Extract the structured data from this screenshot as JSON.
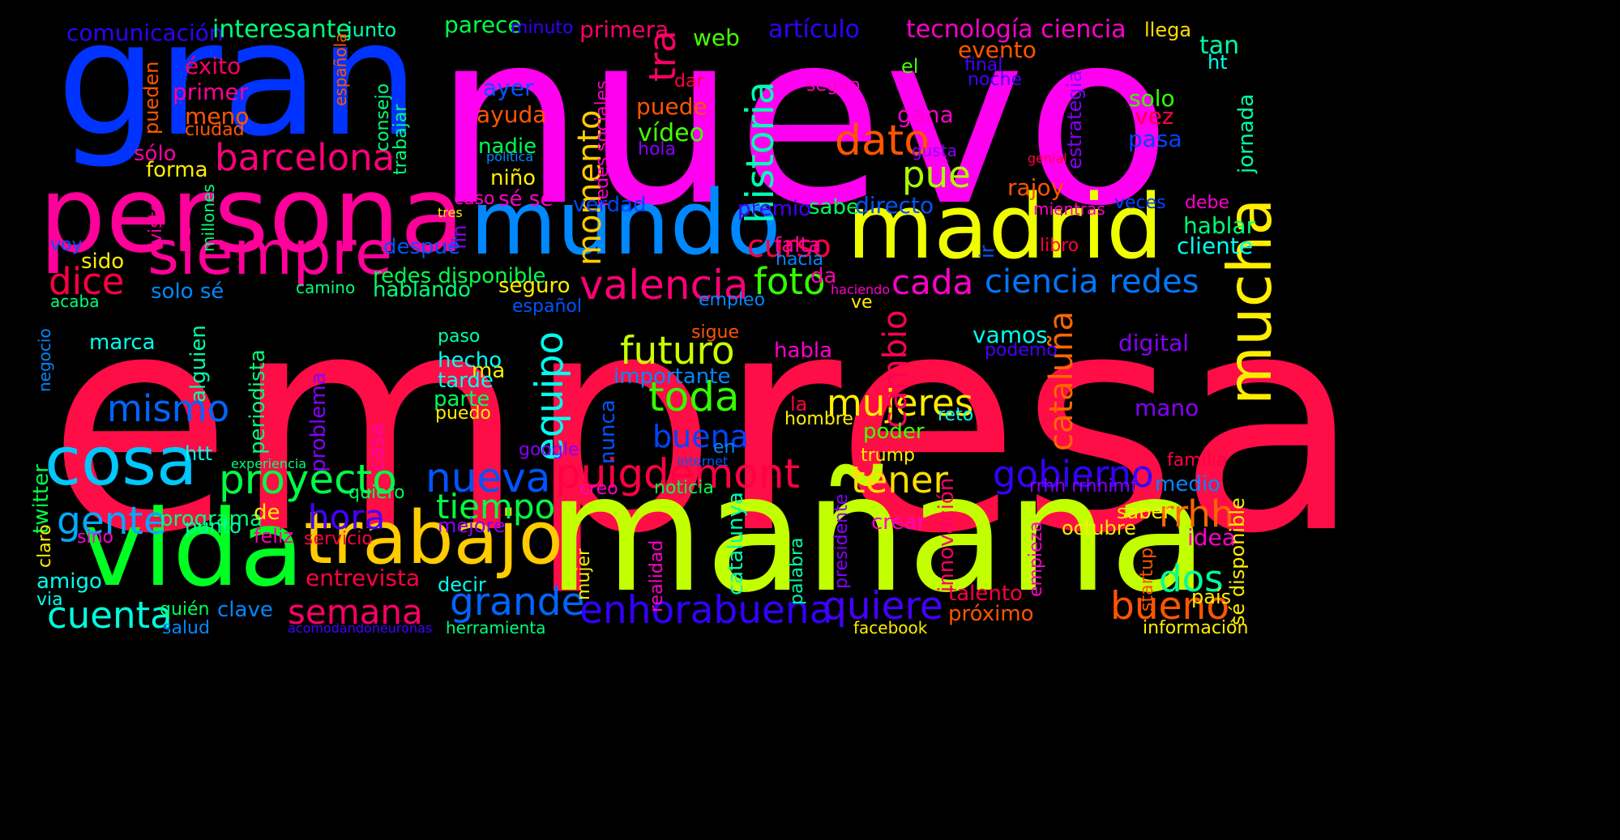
{
  "words": [
    {
      "text": "empresa",
      "color": "#ff0d47"
    },
    {
      "text": "nuevo",
      "color": "#ff00f0"
    },
    {
      "text": "mañana",
      "color": "#c2ff00"
    },
    {
      "text": "gran",
      "color": "#0033ff"
    },
    {
      "text": "persona",
      "color": "#ff009a"
    },
    {
      "text": "vida",
      "color": "#00ff22"
    },
    {
      "text": "madrid",
      "color": "#f0ff00"
    },
    {
      "text": "mundo",
      "color": "#0088ff"
    },
    {
      "text": "trabajo",
      "color": "#ffcc00"
    },
    {
      "text": "siempre",
      "color": "#ff0099"
    },
    {
      "text": "cosa",
      "color": "#00c8ff"
    },
    {
      "text": "mucha",
      "color": "#ffee00"
    },
    {
      "text": "barcelona",
      "color": "#ff007a"
    },
    {
      "text": "proyecto",
      "color": "#00ff44"
    },
    {
      "text": "puigdemont",
      "color": "#ff0044"
    },
    {
      "text": "valencia",
      "color": "#ff0077"
    },
    {
      "text": "nueva",
      "color": "#0055ff"
    },
    {
      "text": "historia",
      "color": "#00ffb3"
    },
    {
      "text": "enhorabuena",
      "color": "#3300ff"
    },
    {
      "text": "grande",
      "color": "#0066ff"
    },
    {
      "text": "quiere",
      "color": "#4400ff"
    },
    {
      "text": "futuro",
      "color": "#c8ff00"
    },
    {
      "text": "equipo",
      "color": "#00ffee"
    },
    {
      "text": "toda",
      "color": "#33ff00"
    },
    {
      "text": "tener",
      "color": "#ffdd00"
    },
    {
      "text": "semana",
      "color": "#ff0066"
    },
    {
      "text": "cuenta",
      "color": "#00ffdd"
    },
    {
      "text": "gente",
      "color": "#00aaff"
    },
    {
      "text": "gobierno",
      "color": "#3300ff"
    },
    {
      "text": "bueno",
      "color": "#ff5500"
    },
    {
      "text": "mujeres",
      "color": "#ffee00"
    },
    {
      "text": "dato",
      "color": "#ff5500"
    },
    {
      "text": "foto",
      "color": "#33ff00"
    },
    {
      "text": "cada",
      "color": "#ff00cc"
    },
    {
      "text": "ciencia redes",
      "color": "#0077ff"
    },
    {
      "text": "mismo",
      "color": "#0066ff"
    },
    {
      "text": "hora",
      "color": "#4400ff"
    },
    {
      "text": "tiempo",
      "color": "#00ff44"
    },
    {
      "text": "pue",
      "color": "#aaff00"
    },
    {
      "text": "momento",
      "color": "#ffcc00"
    },
    {
      "text": "cataluña",
      "color": "#ff6600"
    },
    {
      "text": "cambio",
      "color": "#ff0055"
    },
    {
      "text": "curso",
      "color": "#ff0044"
    },
    {
      "text": "dos",
      "color": "#00ff99"
    },
    {
      "text": "rrhh",
      "color": "#ff6600"
    },
    {
      "text": "buena",
      "color": "#0044ff"
    },
    {
      "text": "dice",
      "color": "#ff0044"
    },
    {
      "text": "tra",
      "color": "#ff0066"
    },
    {
      "text": "comunicación",
      "color": "#3300ff"
    },
    {
      "text": "interesante",
      "color": "#00ff77"
    },
    {
      "text": "junto",
      "color": "#00ffaa"
    },
    {
      "text": "parece",
      "color": "#00ff44"
    },
    {
      "text": "minuto",
      "color": "#3300ff"
    },
    {
      "text": "primera",
      "color": "#ff0066"
    },
    {
      "text": "web",
      "color": "#44ff00"
    },
    {
      "text": "artículo",
      "color": "#3300ff"
    },
    {
      "text": "tecnología ciencia",
      "color": "#ff00cc"
    },
    {
      "text": "llega",
      "color": "#ffdd00"
    },
    {
      "text": "tan",
      "color": "#00ffaa"
    },
    {
      "text": "ht",
      "color": "#00ffee"
    },
    {
      "text": "éxito",
      "color": "#ff0066"
    },
    {
      "text": "evento",
      "color": "#ff5500"
    },
    {
      "text": "el",
      "color": "#44ff00"
    },
    {
      "text": "final",
      "color": "#4400ff"
    },
    {
      "text": "noche",
      "color": "#4400ff"
    },
    {
      "text": "primer",
      "color": "#ff0099"
    },
    {
      "text": "pueden",
      "color": "#ff5500"
    },
    {
      "text": "meno",
      "color": "#ff5500"
    },
    {
      "text": "ciudad",
      "color": "#ff5500"
    },
    {
      "text": "española",
      "color": "#ff5500"
    },
    {
      "text": "consejo",
      "color": "#00ff77"
    },
    {
      "text": "trabajar",
      "color": "#00ff77"
    },
    {
      "text": "ayer",
      "color": "#0055ff"
    },
    {
      "text": "ayuda",
      "color": "#ff5500"
    },
    {
      "text": "puede",
      "color": "#ff5500"
    },
    {
      "text": "dar",
      "color": "#ff0044"
    },
    {
      "text": "según",
      "color": "#ff00cc"
    },
    {
      "text": "gana",
      "color": "#ff00cc"
    },
    {
      "text": "estrategia",
      "color": "#8800ff"
    },
    {
      "text": "solo",
      "color": "#33ff00"
    },
    {
      "text": "vez",
      "color": "#ff0044"
    },
    {
      "text": "pasa",
      "color": "#0044ff"
    },
    {
      "text": "jornada",
      "color": "#00ffaa"
    },
    {
      "text": "sólo",
      "color": "#ff00aa"
    },
    {
      "text": "forma",
      "color": "#ffee00"
    },
    {
      "text": "nadie",
      "color": "#00ff55"
    },
    {
      "text": "politica",
      "color": "#0088ff"
    },
    {
      "text": "redes sociales",
      "color": "#ff00cc"
    },
    {
      "text": "vídeo",
      "color": "#44ff00"
    },
    {
      "text": "hola",
      "color": "#8800ff"
    },
    {
      "text": "gusta",
      "color": "#8800ff"
    },
    {
      "text": "genial",
      "color": "#ff0044"
    },
    {
      "text": "niño",
      "color": "#ffee00"
    },
    {
      "text": "caso",
      "color": "#ff00cc"
    },
    {
      "text": "sé sé",
      "color": "#ff00cc"
    },
    {
      "text": "verdad",
      "color": "#0044ff"
    },
    {
      "text": "premio",
      "color": "#4400ff"
    },
    {
      "text": "sabe",
      "color": "#00ff55"
    },
    {
      "text": "directo",
      "color": "#0055ff"
    },
    {
      "text": "rajoy",
      "color": "#ff5500"
    },
    {
      "text": "mientras",
      "color": "#ff00cc"
    },
    {
      "text": "veces",
      "color": "#0044ff"
    },
    {
      "text": "debe",
      "color": "#ff00cc"
    },
    {
      "text": "visto",
      "color": "#ff00aa"
    },
    {
      "text": "millones",
      "color": "#00ff77"
    },
    {
      "text": "tres",
      "color": "#ffee00"
    },
    {
      "text": "fin",
      "color": "#8800ff"
    },
    {
      "text": "voy",
      "color": "#0055ff"
    },
    {
      "text": "falta",
      "color": "#ff00aa"
    },
    {
      "text": "ir",
      "color": "#0055ff"
    },
    {
      "text": "libro",
      "color": "#ff0044"
    },
    {
      "text": "hablar",
      "color": "#00ff77"
    },
    {
      "text": "cliente",
      "color": "#00ffee"
    },
    {
      "text": "sido",
      "color": "#ffee00"
    },
    {
      "text": "despué",
      "color": "#0055ff"
    },
    {
      "text": "hacia",
      "color": "#0088ff"
    },
    {
      "text": "redes disponible",
      "color": "#00ff44"
    },
    {
      "text": "da",
      "color": "#ff00aa"
    },
    {
      "text": "solo sé",
      "color": "#0088ff"
    },
    {
      "text": "camino",
      "color": "#00ff77"
    },
    {
      "text": "hablando",
      "color": "#00ff77"
    },
    {
      "text": "seguro",
      "color": "#ffee00"
    },
    {
      "text": "haciendo",
      "color": "#ff00cc"
    },
    {
      "text": "empleo",
      "color": "#0088ff"
    },
    {
      "text": "acaba",
      "color": "#00ff77"
    },
    {
      "text": "español",
      "color": "#0055ff"
    },
    {
      "text": "ve",
      "color": "#ffee00"
    },
    {
      "text": "twitter",
      "color": "#00ff44"
    },
    {
      "text": "negocio",
      "color": "#0088ff"
    },
    {
      "text": "marca",
      "color": "#00ffee"
    },
    {
      "text": "alguien",
      "color": "#00ffaa"
    },
    {
      "text": "periodista",
      "color": "#00ff77"
    },
    {
      "text": "paso",
      "color": "#00ffaa"
    },
    {
      "text": "sigue",
      "color": "#ff5500"
    },
    {
      "text": "vamos",
      "color": "#00ffee"
    },
    {
      "text": "podemo",
      "color": "#4400ff"
    },
    {
      "text": "digital",
      "color": "#8800ff"
    },
    {
      "text": "ma",
      "color": "#ffee00"
    },
    {
      "text": "hecho",
      "color": "#00ffee"
    },
    {
      "text": "importante",
      "color": "#0088ff"
    },
    {
      "text": "habla",
      "color": "#ff00cc"
    },
    {
      "text": "tarde",
      "color": "#00ffee"
    },
    {
      "text": "parte",
      "color": "#00ff55"
    },
    {
      "text": "puedo",
      "color": "#ffee00"
    },
    {
      "text": "problema",
      "color": "#8800ff"
    },
    {
      "text": "la",
      "color": "#ff0044"
    },
    {
      "text": "hombre",
      "color": "#ffee00"
    },
    {
      "text": "reto",
      "color": "#00ffee"
    },
    {
      "text": "mano",
      "color": "#8800ff"
    },
    {
      "text": "htt",
      "color": "#00ffee"
    },
    {
      "text": "experiencia",
      "color": "#00ff77"
    },
    {
      "text": "casa",
      "color": "#ff00aa"
    },
    {
      "text": "google",
      "color": "#8800ff"
    },
    {
      "text": "en",
      "color": "#0088ff"
    },
    {
      "text": "internet",
      "color": "#0055ff"
    },
    {
      "text": "poder",
      "color": "#44ff00"
    },
    {
      "text": "trump",
      "color": "#ffee00"
    },
    {
      "text": "familia",
      "color": "#ff0044"
    },
    {
      "text": "nunca",
      "color": "#0055ff"
    },
    {
      "text": "quiero",
      "color": "#00ff55"
    },
    {
      "text": "creo",
      "color": "#ff00cc"
    },
    {
      "text": "noticia",
      "color": "#00ff44"
    },
    {
      "text": "rrhh rrhhimf",
      "color": "#8800ff"
    },
    {
      "text": "medio",
      "color": "#0088ff"
    },
    {
      "text": "programa",
      "color": "#00ff77"
    },
    {
      "text": "de",
      "color": "#ffee00"
    },
    {
      "text": "catalunya",
      "color": "#00ffaa"
    },
    {
      "text": "saber",
      "color": "#ffee00"
    },
    {
      "text": "innovación",
      "color": "#ff0066"
    },
    {
      "text": "presidente",
      "color": "#8800ff"
    },
    {
      "text": "claro",
      "color": "#ffee00"
    },
    {
      "text": "punto",
      "color": "#00ffaa"
    },
    {
      "text": "mejore",
      "color": "#8800ff"
    },
    {
      "text": "idea",
      "color": "#ff00cc"
    },
    {
      "text": "sino",
      "color": "#ff00cc"
    },
    {
      "text": "feliz",
      "color": "#ff00aa"
    },
    {
      "text": "servicio",
      "color": "#ff0044"
    },
    {
      "text": "crear",
      "color": "#ff00cc"
    },
    {
      "text": "octubre",
      "color": "#ffee00"
    },
    {
      "text": "empieza",
      "color": "#ff00cc"
    },
    {
      "text": "sé disponible",
      "color": "#ffee00"
    },
    {
      "text": "amigo",
      "color": "#00ffee"
    },
    {
      "text": "realidad",
      "color": "#ff00cc"
    },
    {
      "text": "palabra",
      "color": "#00ffaa"
    },
    {
      "text": "startup",
      "color": "#ff5500"
    },
    {
      "text": "mujer",
      "color": "#ffee00"
    },
    {
      "text": "entrevista",
      "color": "#ff0044"
    },
    {
      "text": "via",
      "color": "#00ffee"
    },
    {
      "text": "decir",
      "color": "#00ffee"
    },
    {
      "text": "quién",
      "color": "#00ff55"
    },
    {
      "text": "clave",
      "color": "#0088ff"
    },
    {
      "text": "talento",
      "color": "#ff0044"
    },
    {
      "text": "país",
      "color": "#ffee00"
    },
    {
      "text": "salud",
      "color": "#0088ff"
    },
    {
      "text": "acomodandoneuronas",
      "color": "#4400ff"
    },
    {
      "text": "herramienta",
      "color": "#00ff77"
    },
    {
      "text": "facebook",
      "color": "#ffee00"
    },
    {
      "text": "próximo",
      "color": "#ff5500"
    },
    {
      "text": "información",
      "color": "#ffee00"
    }
  ]
}
